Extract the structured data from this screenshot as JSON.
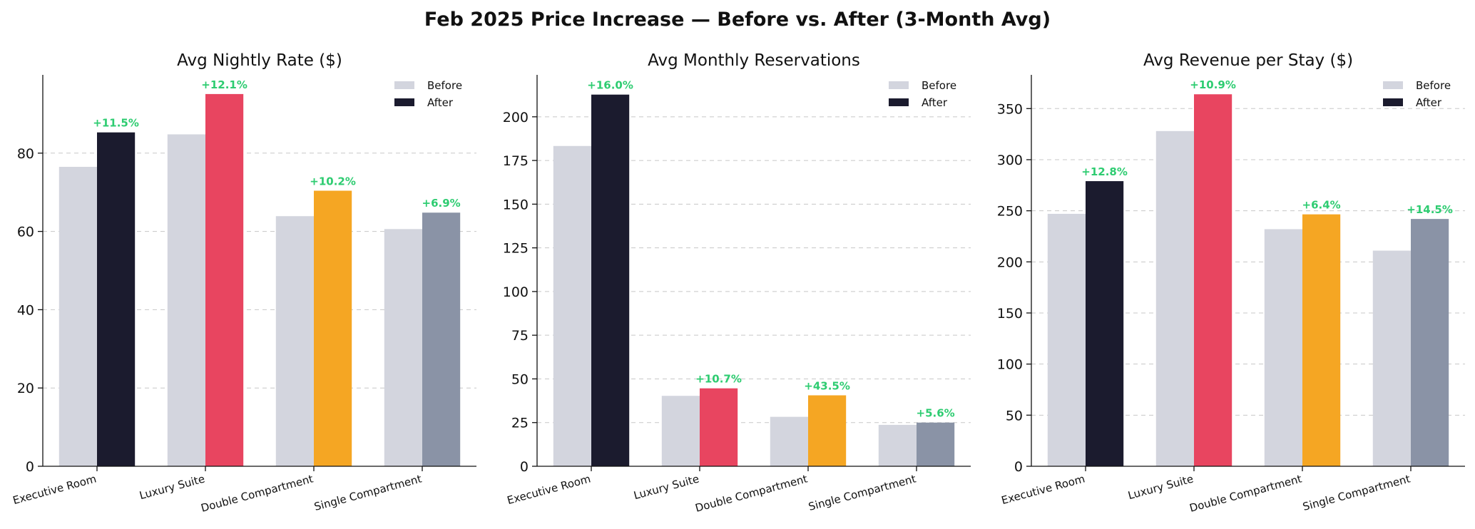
{
  "suptitle": "Feb 2025 Price Increase — Before vs. After (3-Month Avg)",
  "colors": {
    "before": "#d3d5de",
    "after_by_category": [
      "#1b1b2e",
      "#e84560",
      "#f5a623",
      "#8a93a6"
    ],
    "percent_label": "#2ecc71",
    "grid": "#c8c8c8"
  },
  "chart_data": [
    {
      "type": "bar",
      "title": "Avg Nightly Rate ($)",
      "categories": [
        "Executive Room",
        "Luxury Suite",
        "Double Compartment",
        "Single Compartment"
      ],
      "series": [
        {
          "name": "Before",
          "values": [
            76.5,
            84.8,
            63.9,
            60.6
          ]
        },
        {
          "name": "After",
          "values": [
            85.3,
            95.1,
            70.4,
            64.8
          ]
        }
      ],
      "change_labels": [
        "+11.5%",
        "+12.1%",
        "+10.2%",
        "+6.9%"
      ],
      "ylim": [
        0,
        100
      ],
      "yticks": [
        0,
        20,
        40,
        60,
        80
      ],
      "legend": [
        "Before",
        "After"
      ],
      "legend_position": "top-right",
      "grid": "y-dashed"
    },
    {
      "type": "bar",
      "title": "Avg Monthly Reservations",
      "categories": [
        "Executive Room",
        "Luxury Suite",
        "Double Compartment",
        "Single Compartment"
      ],
      "series": [
        {
          "name": "Before",
          "values": [
            183.3,
            40.3,
            28.3,
            23.7
          ]
        },
        {
          "name": "After",
          "values": [
            212.7,
            44.6,
            40.6,
            25.0
          ]
        }
      ],
      "change_labels": [
        "+16.0%",
        "+10.7%",
        "+43.5%",
        "+5.6%"
      ],
      "ylim": [
        0,
        224
      ],
      "yticks": [
        0,
        25,
        50,
        75,
        100,
        125,
        150,
        175,
        200
      ],
      "legend": [
        "Before",
        "After"
      ],
      "legend_position": "top-right",
      "grid": "y-dashed"
    },
    {
      "type": "bar",
      "title": "Avg Revenue per Stay ($)",
      "categories": [
        "Executive Room",
        "Luxury Suite",
        "Double Compartment",
        "Single Compartment"
      ],
      "series": [
        {
          "name": "Before",
          "values": [
            247,
            328,
            232,
            211
          ]
        },
        {
          "name": "After",
          "values": [
            279,
            364,
            246.5,
            242
          ]
        }
      ],
      "change_labels": [
        "+12.8%",
        "+10.9%",
        "+6.4%",
        "+14.5%"
      ],
      "ylim": [
        0,
        383
      ],
      "yticks": [
        0,
        50,
        100,
        150,
        200,
        250,
        300,
        350
      ],
      "legend": [
        "Before",
        "After"
      ],
      "legend_position": "top-right",
      "grid": "y-dashed"
    }
  ]
}
